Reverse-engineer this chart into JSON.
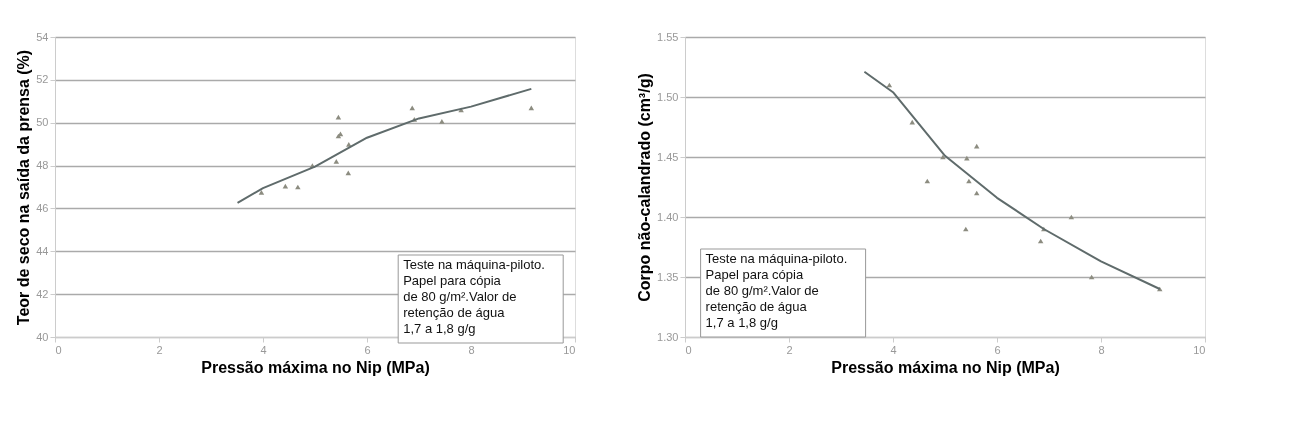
{
  "chart_data": [
    {
      "type": "scatter",
      "xlabel": "Pressão máxima no Nip (MPa)",
      "ylabel": "Teor de seco na saída da prensa (%)",
      "xlim": [
        0,
        10
      ],
      "xticks": [
        0,
        2,
        4,
        6,
        8,
        10
      ],
      "ylim": [
        40,
        54
      ],
      "yticks": [
        40,
        42,
        44,
        46,
        48,
        50,
        52,
        54
      ],
      "grid": "y",
      "legend": false,
      "series": [
        {
          "type": "scatter",
          "color": "#8c8c80",
          "marker": "triangle",
          "x": [
            3.97,
            4.43,
            4.67,
            4.95,
            5.41,
            5.45,
            5.45,
            5.49,
            5.65,
            5.64,
            6.87,
            6.91,
            7.44,
            7.81,
            9.16
          ],
          "values": [
            46.75,
            47.04,
            47.0,
            48.0,
            48.2,
            50.26,
            49.38,
            49.48,
            48.99,
            47.66,
            50.69,
            50.16,
            50.06,
            50.6,
            50.69
          ]
        },
        {
          "type": "line",
          "color": "#5f6b6b",
          "marker": "none",
          "line_style": "solid",
          "x": [
            3.51,
            4.0,
            5.0,
            6.0,
            7.0,
            8.0,
            9.16
          ],
          "values": [
            46.26,
            46.95,
            47.95,
            49.3,
            50.2,
            50.75,
            51.58
          ]
        }
      ],
      "annotations": [
        "Teste na máquina-piloto.\nPapel para cópia\nde 80 g/m².Valor de\nretenção de água\n1,7 a 1,8 g/g"
      ]
    },
    {
      "type": "scatter",
      "xlabel": "Pressão máxima no Nip (MPa)",
      "ylabel": "Corpo não-calandrado (cm³/g)",
      "xlim": [
        0,
        10
      ],
      "xticks": [
        0,
        2,
        4,
        6,
        8,
        10
      ],
      "ylim": [
        1.3,
        1.55
      ],
      "yticks": [
        {
          "value": 1.3,
          "label": "1.30"
        },
        {
          "value": 1.35,
          "label": "1.35"
        },
        {
          "value": 1.4,
          "label": "1.40"
        },
        {
          "value": 1.45,
          "label": "1.45"
        },
        {
          "value": 1.5,
          "label": "1.50"
        },
        {
          "value": 1.55,
          "label": "1.55"
        }
      ],
      "grid": "y",
      "legend": false,
      "series": [
        {
          "type": "scatter",
          "color": "#8c8c80",
          "marker": "triangle",
          "x": [
            3.93,
            4.37,
            4.66,
            4.96,
            5.42,
            5.61,
            5.46,
            5.61,
            5.4,
            6.9,
            6.84,
            7.43,
            7.82,
            9.13
          ],
          "values": [
            1.51,
            1.479,
            1.43,
            1.45,
            1.449,
            1.459,
            1.43,
            1.42,
            1.39,
            1.39,
            1.38,
            1.4,
            1.35,
            1.34
          ]
        },
        {
          "type": "line",
          "color": "#5f6b6b",
          "marker": "none",
          "line_style": "solid",
          "x": [
            3.45,
            4.0,
            5.0,
            6.0,
            6.9,
            8.0,
            9.13
          ],
          "values": [
            1.521,
            1.504,
            1.451,
            1.416,
            1.39,
            1.363,
            1.34
          ]
        }
      ],
      "annotations": [
        "Teste na máquina-piloto.\nPapel para cópia\nde 80 g/m².Valor de\nretenção de água\n1,7 a 1,8 g/g"
      ]
    }
  ]
}
